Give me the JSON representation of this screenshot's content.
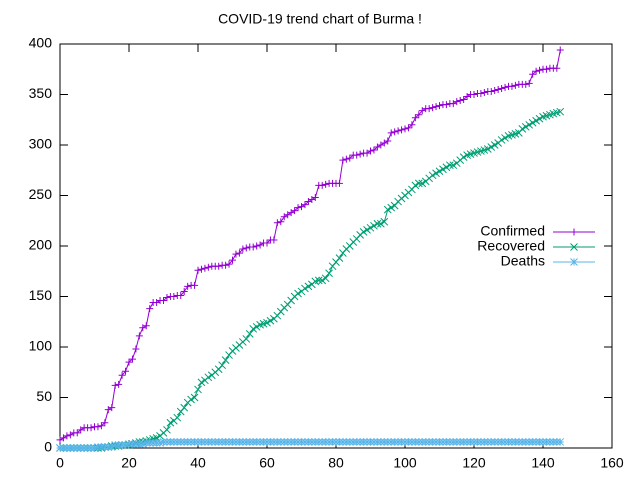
{
  "chart_data": {
    "type": "line",
    "title": "COVID-19 trend chart of Burma !",
    "x": [
      0,
      1,
      2,
      3,
      4,
      5,
      6,
      7,
      8,
      9,
      10,
      11,
      12,
      13,
      14,
      15,
      16,
      17,
      18,
      19,
      20,
      21,
      22,
      23,
      24,
      25,
      26,
      27,
      28,
      29,
      30,
      31,
      32,
      33,
      34,
      35,
      36,
      37,
      38,
      39,
      40,
      41,
      42,
      43,
      44,
      45,
      46,
      47,
      48,
      49,
      50,
      51,
      52,
      53,
      54,
      55,
      56,
      57,
      58,
      59,
      60,
      61,
      62,
      63,
      64,
      65,
      66,
      67,
      68,
      69,
      70,
      71,
      72,
      73,
      74,
      75,
      76,
      77,
      78,
      79,
      80,
      81,
      82,
      83,
      84,
      85,
      86,
      87,
      88,
      89,
      90,
      91,
      92,
      93,
      94,
      95,
      96,
      97,
      98,
      99,
      100,
      101,
      102,
      103,
      104,
      105,
      106,
      107,
      108,
      109,
      110,
      111,
      112,
      113,
      114,
      115,
      116,
      117,
      118,
      119,
      120,
      121,
      122,
      123,
      124,
      125,
      126,
      127,
      128,
      129,
      130,
      131,
      132,
      133,
      134,
      135,
      136,
      137,
      138,
      139,
      140,
      141,
      142,
      143,
      144,
      145
    ],
    "series": [
      {
        "name": "Confirmed",
        "color": "#9400d3",
        "marker": "plus",
        "values": [
          8,
          10,
          12,
          13,
          15,
          15,
          18,
          20,
          20,
          20,
          21,
          21,
          22,
          25,
          38,
          40,
          62,
          63,
          72,
          76,
          85,
          88,
          98,
          111,
          119,
          121,
          138,
          144,
          144,
          146,
          146,
          149,
          150,
          150,
          151,
          151,
          155,
          160,
          161,
          161,
          176,
          177,
          178,
          179,
          180,
          180,
          180,
          181,
          181,
          182,
          186,
          192,
          193,
          197,
          198,
          199,
          199,
          200,
          201,
          203,
          203,
          206,
          206,
          223,
          224,
          229,
          231,
          233,
          235,
          238,
          239,
          241,
          244,
          246,
          248,
          260,
          260,
          261,
          262,
          262,
          262,
          262,
          285,
          286,
          287,
          290,
          290,
          291,
          292,
          292,
          294,
          295,
          298,
          300,
          302,
          304,
          312,
          313,
          314,
          315,
          316,
          317,
          320,
          327,
          330,
          334,
          336,
          336,
          337,
          338,
          339,
          340,
          340,
          341,
          341,
          343,
          344,
          345,
          348,
          350,
          350,
          351,
          351,
          352,
          353,
          353,
          354,
          355,
          356,
          357,
          358,
          358,
          359,
          360,
          360,
          360,
          361,
          370,
          373,
          374,
          375,
          375,
          376,
          376,
          376,
          394
        ]
      },
      {
        "name": "Recovered",
        "color": "#009e73",
        "marker": "cross",
        "values": [
          0,
          0,
          0,
          0,
          0,
          0,
          0,
          0,
          0,
          0,
          0,
          0,
          0,
          1,
          1,
          2,
          2,
          2,
          3,
          3,
          3,
          4,
          5,
          6,
          6,
          7,
          8,
          9,
          10,
          12,
          15,
          18,
          25,
          27,
          30,
          36,
          40,
          45,
          48,
          50,
          58,
          65,
          67,
          70,
          72,
          75,
          78,
          82,
          87,
          92,
          96,
          99,
          102,
          105,
          108,
          113,
          118,
          120,
          122,
          123,
          124,
          126,
          128,
          131,
          135,
          139,
          142,
          146,
          150,
          153,
          155,
          158,
          160,
          162,
          165,
          166,
          166,
          168,
          173,
          180,
          184,
          188,
          193,
          197,
          200,
          204,
          207,
          211,
          214,
          216,
          218,
          220,
          222,
          222,
          224,
          236,
          238,
          240,
          244,
          247,
          250,
          253,
          256,
          260,
          262,
          262,
          264,
          267,
          270,
          272,
          274,
          276,
          278,
          280,
          280,
          282,
          285,
          288,
          290,
          291,
          292,
          293,
          294,
          295,
          296,
          298,
          300,
          302,
          305,
          307,
          309,
          310,
          311,
          312,
          316,
          318,
          320,
          322,
          324,
          326,
          328,
          329,
          330,
          331,
          332,
          333
        ]
      },
      {
        "name": "Deaths",
        "color": "#56b4e9",
        "marker": "star",
        "values": [
          0,
          0,
          0,
          0,
          0,
          0,
          0,
          0,
          0,
          0,
          0,
          1,
          1,
          1,
          1,
          1,
          3,
          3,
          3,
          3,
          4,
          4,
          4,
          4,
          4,
          5,
          5,
          5,
          5,
          5,
          6,
          6,
          6,
          6,
          6,
          6,
          6,
          6,
          6,
          6,
          6,
          6,
          6,
          6,
          6,
          6,
          6,
          6,
          6,
          6,
          6,
          6,
          6,
          6,
          6,
          6,
          6,
          6,
          6,
          6,
          6,
          6,
          6,
          6,
          6,
          6,
          6,
          6,
          6,
          6,
          6,
          6,
          6,
          6,
          6,
          6,
          6,
          6,
          6,
          6,
          6,
          6,
          6,
          6,
          6,
          6,
          6,
          6,
          6,
          6,
          6,
          6,
          6,
          6,
          6,
          6,
          6,
          6,
          6,
          6,
          6,
          6,
          6,
          6,
          6,
          6,
          6,
          6,
          6,
          6,
          6,
          6,
          6,
          6,
          6,
          6,
          6,
          6,
          6,
          6,
          6,
          6,
          6,
          6,
          6,
          6,
          6,
          6,
          6,
          6,
          6,
          6,
          6,
          6,
          6,
          6,
          6,
          6,
          6,
          6,
          6,
          6,
          6,
          6,
          6,
          6
        ]
      }
    ],
    "xlim": [
      0,
      160
    ],
    "xticks": [
      0,
      20,
      40,
      60,
      80,
      100,
      120,
      140,
      160
    ],
    "ylim": [
      0,
      400
    ],
    "yticks": [
      0,
      50,
      100,
      150,
      200,
      250,
      300,
      350,
      400
    ]
  }
}
